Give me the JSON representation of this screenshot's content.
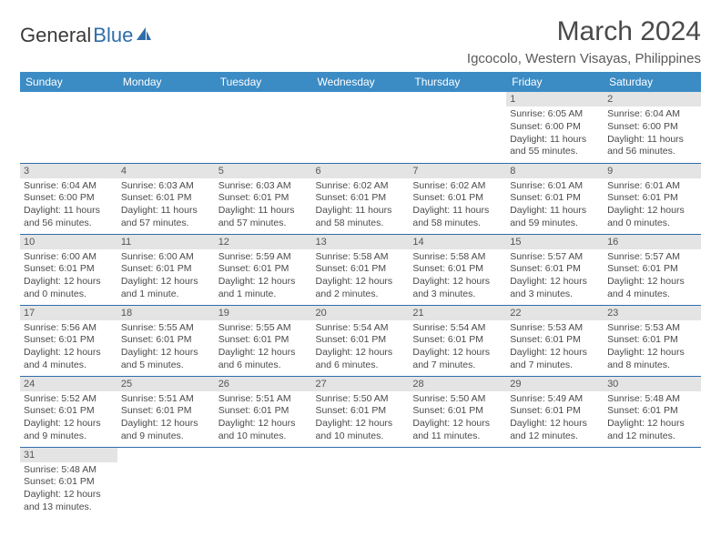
{
  "logo": {
    "text1": "General",
    "text2": "Blue"
  },
  "title": "March 2024",
  "location": "Igcocolo, Western Visayas, Philippines",
  "colors": {
    "header_bg": "#3b8bc4",
    "header_text": "#ffffff",
    "daynum_bg": "#e4e4e4",
    "border": "#2f6da9",
    "body_text": "#4a4a4a",
    "logo_blue": "#2f6da9"
  },
  "weekdays": [
    "Sunday",
    "Monday",
    "Tuesday",
    "Wednesday",
    "Thursday",
    "Friday",
    "Saturday"
  ],
  "weeks": [
    [
      {
        "day": "",
        "sunrise": "",
        "sunset": "",
        "daylight": ""
      },
      {
        "day": "",
        "sunrise": "",
        "sunset": "",
        "daylight": ""
      },
      {
        "day": "",
        "sunrise": "",
        "sunset": "",
        "daylight": ""
      },
      {
        "day": "",
        "sunrise": "",
        "sunset": "",
        "daylight": ""
      },
      {
        "day": "",
        "sunrise": "",
        "sunset": "",
        "daylight": ""
      },
      {
        "day": "1",
        "sunrise": "Sunrise: 6:05 AM",
        "sunset": "Sunset: 6:00 PM",
        "daylight": "Daylight: 11 hours and 55 minutes."
      },
      {
        "day": "2",
        "sunrise": "Sunrise: 6:04 AM",
        "sunset": "Sunset: 6:00 PM",
        "daylight": "Daylight: 11 hours and 56 minutes."
      }
    ],
    [
      {
        "day": "3",
        "sunrise": "Sunrise: 6:04 AM",
        "sunset": "Sunset: 6:00 PM",
        "daylight": "Daylight: 11 hours and 56 minutes."
      },
      {
        "day": "4",
        "sunrise": "Sunrise: 6:03 AM",
        "sunset": "Sunset: 6:01 PM",
        "daylight": "Daylight: 11 hours and 57 minutes."
      },
      {
        "day": "5",
        "sunrise": "Sunrise: 6:03 AM",
        "sunset": "Sunset: 6:01 PM",
        "daylight": "Daylight: 11 hours and 57 minutes."
      },
      {
        "day": "6",
        "sunrise": "Sunrise: 6:02 AM",
        "sunset": "Sunset: 6:01 PM",
        "daylight": "Daylight: 11 hours and 58 minutes."
      },
      {
        "day": "7",
        "sunrise": "Sunrise: 6:02 AM",
        "sunset": "Sunset: 6:01 PM",
        "daylight": "Daylight: 11 hours and 58 minutes."
      },
      {
        "day": "8",
        "sunrise": "Sunrise: 6:01 AM",
        "sunset": "Sunset: 6:01 PM",
        "daylight": "Daylight: 11 hours and 59 minutes."
      },
      {
        "day": "9",
        "sunrise": "Sunrise: 6:01 AM",
        "sunset": "Sunset: 6:01 PM",
        "daylight": "Daylight: 12 hours and 0 minutes."
      }
    ],
    [
      {
        "day": "10",
        "sunrise": "Sunrise: 6:00 AM",
        "sunset": "Sunset: 6:01 PM",
        "daylight": "Daylight: 12 hours and 0 minutes."
      },
      {
        "day": "11",
        "sunrise": "Sunrise: 6:00 AM",
        "sunset": "Sunset: 6:01 PM",
        "daylight": "Daylight: 12 hours and 1 minute."
      },
      {
        "day": "12",
        "sunrise": "Sunrise: 5:59 AM",
        "sunset": "Sunset: 6:01 PM",
        "daylight": "Daylight: 12 hours and 1 minute."
      },
      {
        "day": "13",
        "sunrise": "Sunrise: 5:58 AM",
        "sunset": "Sunset: 6:01 PM",
        "daylight": "Daylight: 12 hours and 2 minutes."
      },
      {
        "day": "14",
        "sunrise": "Sunrise: 5:58 AM",
        "sunset": "Sunset: 6:01 PM",
        "daylight": "Daylight: 12 hours and 3 minutes."
      },
      {
        "day": "15",
        "sunrise": "Sunrise: 5:57 AM",
        "sunset": "Sunset: 6:01 PM",
        "daylight": "Daylight: 12 hours and 3 minutes."
      },
      {
        "day": "16",
        "sunrise": "Sunrise: 5:57 AM",
        "sunset": "Sunset: 6:01 PM",
        "daylight": "Daylight: 12 hours and 4 minutes."
      }
    ],
    [
      {
        "day": "17",
        "sunrise": "Sunrise: 5:56 AM",
        "sunset": "Sunset: 6:01 PM",
        "daylight": "Daylight: 12 hours and 4 minutes."
      },
      {
        "day": "18",
        "sunrise": "Sunrise: 5:55 AM",
        "sunset": "Sunset: 6:01 PM",
        "daylight": "Daylight: 12 hours and 5 minutes."
      },
      {
        "day": "19",
        "sunrise": "Sunrise: 5:55 AM",
        "sunset": "Sunset: 6:01 PM",
        "daylight": "Daylight: 12 hours and 6 minutes."
      },
      {
        "day": "20",
        "sunrise": "Sunrise: 5:54 AM",
        "sunset": "Sunset: 6:01 PM",
        "daylight": "Daylight: 12 hours and 6 minutes."
      },
      {
        "day": "21",
        "sunrise": "Sunrise: 5:54 AM",
        "sunset": "Sunset: 6:01 PM",
        "daylight": "Daylight: 12 hours and 7 minutes."
      },
      {
        "day": "22",
        "sunrise": "Sunrise: 5:53 AM",
        "sunset": "Sunset: 6:01 PM",
        "daylight": "Daylight: 12 hours and 7 minutes."
      },
      {
        "day": "23",
        "sunrise": "Sunrise: 5:53 AM",
        "sunset": "Sunset: 6:01 PM",
        "daylight": "Daylight: 12 hours and 8 minutes."
      }
    ],
    [
      {
        "day": "24",
        "sunrise": "Sunrise: 5:52 AM",
        "sunset": "Sunset: 6:01 PM",
        "daylight": "Daylight: 12 hours and 9 minutes."
      },
      {
        "day": "25",
        "sunrise": "Sunrise: 5:51 AM",
        "sunset": "Sunset: 6:01 PM",
        "daylight": "Daylight: 12 hours and 9 minutes."
      },
      {
        "day": "26",
        "sunrise": "Sunrise: 5:51 AM",
        "sunset": "Sunset: 6:01 PM",
        "daylight": "Daylight: 12 hours and 10 minutes."
      },
      {
        "day": "27",
        "sunrise": "Sunrise: 5:50 AM",
        "sunset": "Sunset: 6:01 PM",
        "daylight": "Daylight: 12 hours and 10 minutes."
      },
      {
        "day": "28",
        "sunrise": "Sunrise: 5:50 AM",
        "sunset": "Sunset: 6:01 PM",
        "daylight": "Daylight: 12 hours and 11 minutes."
      },
      {
        "day": "29",
        "sunrise": "Sunrise: 5:49 AM",
        "sunset": "Sunset: 6:01 PM",
        "daylight": "Daylight: 12 hours and 12 minutes."
      },
      {
        "day": "30",
        "sunrise": "Sunrise: 5:48 AM",
        "sunset": "Sunset: 6:01 PM",
        "daylight": "Daylight: 12 hours and 12 minutes."
      }
    ],
    [
      {
        "day": "31",
        "sunrise": "Sunrise: 5:48 AM",
        "sunset": "Sunset: 6:01 PM",
        "daylight": "Daylight: 12 hours and 13 minutes."
      },
      {
        "day": "",
        "sunrise": "",
        "sunset": "",
        "daylight": ""
      },
      {
        "day": "",
        "sunrise": "",
        "sunset": "",
        "daylight": ""
      },
      {
        "day": "",
        "sunrise": "",
        "sunset": "",
        "daylight": ""
      },
      {
        "day": "",
        "sunrise": "",
        "sunset": "",
        "daylight": ""
      },
      {
        "day": "",
        "sunrise": "",
        "sunset": "",
        "daylight": ""
      },
      {
        "day": "",
        "sunrise": "",
        "sunset": "",
        "daylight": ""
      }
    ]
  ]
}
